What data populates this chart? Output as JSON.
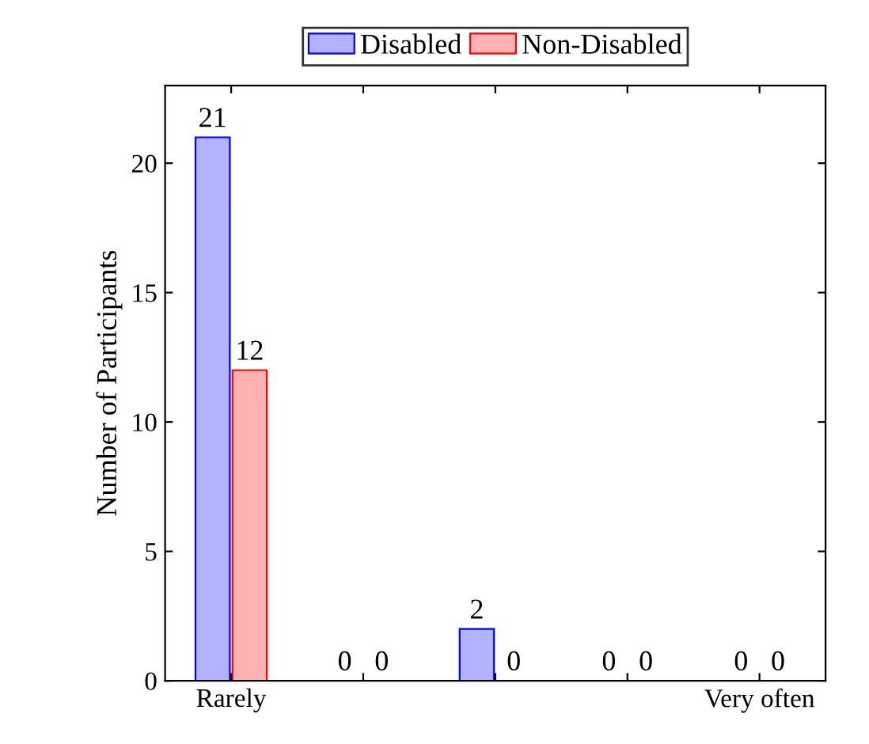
{
  "chart_data": {
    "type": "bar",
    "ylabel": "Number of Participants",
    "categories": [
      "Rarely",
      null,
      null,
      null,
      "Very often"
    ],
    "series": [
      {
        "name": "Disabled",
        "color": "#0000ff",
        "values": [
          21,
          0,
          2,
          0,
          0
        ]
      },
      {
        "name": "Non-Disabled",
        "color": "#ff0000",
        "values": [
          12,
          0,
          0,
          0,
          0
        ]
      }
    ],
    "ylim": [
      0,
      23
    ],
    "yticks": [
      0,
      5,
      10,
      15,
      20
    ],
    "data_labels": true,
    "legend": "top",
    "grid": false
  }
}
